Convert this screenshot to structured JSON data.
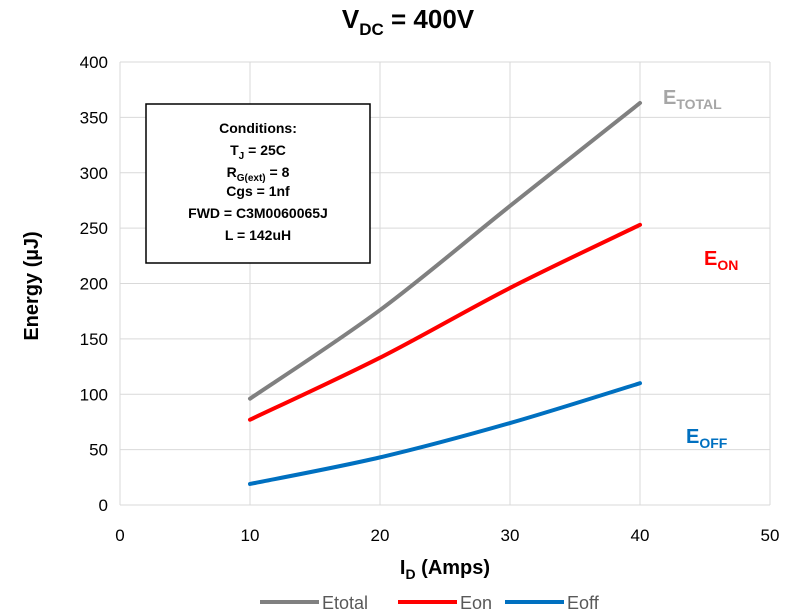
{
  "chart_data": {
    "type": "line",
    "title": {
      "main": "V",
      "sub": "DC",
      "rest": " = 400V"
    },
    "xlabel": {
      "main": "I",
      "sub": "D",
      "rest": " (Amps)"
    },
    "ylabel": "Energy (µJ)",
    "xlim": [
      0,
      50
    ],
    "ylim": [
      0,
      400
    ],
    "xticks": [
      0,
      10,
      20,
      30,
      40,
      50
    ],
    "yticks": [
      0,
      50,
      100,
      150,
      200,
      250,
      300,
      350,
      400
    ],
    "grid": true,
    "legend_position": "bottom",
    "series": [
      {
        "name": "Etotal",
        "color": "#808080",
        "x": [
          10,
          20,
          30,
          40
        ],
        "y": [
          96,
          176,
          270,
          363
        ]
      },
      {
        "name": "Eon",
        "color": "#ff0000",
        "x": [
          10,
          20,
          30,
          40
        ],
        "y": [
          77,
          133,
          196,
          253
        ]
      },
      {
        "name": "Eoff",
        "color": "#0070c0",
        "x": [
          10,
          20,
          30,
          40
        ],
        "y": [
          19,
          43,
          74,
          110
        ]
      }
    ],
    "series_labels": [
      {
        "main": "E",
        "sub": "TOTAL",
        "color": "#a6a6a6"
      },
      {
        "main": "E",
        "sub": "ON",
        "color": "#ff0000"
      },
      {
        "main": "E",
        "sub": "OFF",
        "color": "#0070c0"
      }
    ],
    "annotation": {
      "lines": [
        {
          "main": "Conditions:"
        },
        {
          "main": "T",
          "sub": "J",
          "rest": " = 25C"
        },
        {
          "main": "R",
          "sub": "G(ext)",
          "rest": " = 8"
        },
        {
          "main": "Cgs = 1nf"
        },
        {
          "main": "FWD = C3M0060065J"
        },
        {
          "main": "L = 142uH"
        }
      ]
    }
  }
}
